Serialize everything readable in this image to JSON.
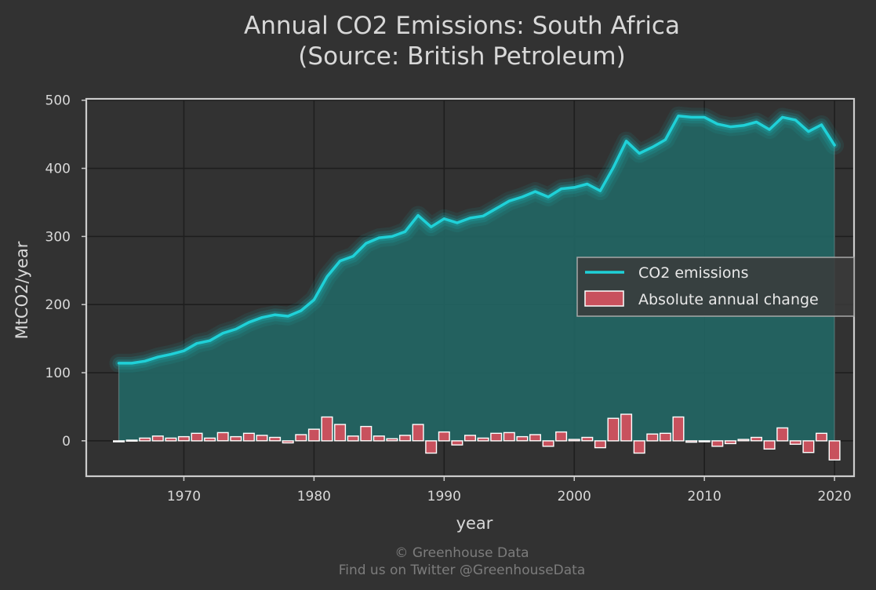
{
  "colors": {
    "background": "#323232",
    "line": "#1fd1d8",
    "glow": "#19b8bf",
    "fill": "#226563",
    "bar": "#c8515d",
    "bar_edge": "#ffffff",
    "frame": "#cccccc",
    "grid": "#1e1e1e"
  },
  "chart_data": {
    "type": "line",
    "title": "Annual CO2 Emissions: South Africa",
    "subtitle": "(Source: British Petroleum)",
    "xlabel": "year",
    "ylabel": "MtCO2/year",
    "xlim": [
      1962.5,
      2021.5
    ],
    "ylim": [
      -52,
      502
    ],
    "x_ticks": [
      1970,
      1980,
      1990,
      2000,
      2010,
      2020
    ],
    "y_ticks": [
      0,
      100,
      200,
      300,
      400,
      500
    ],
    "grid": true,
    "legend_position": "right",
    "x": [
      1965,
      1966,
      1967,
      1968,
      1969,
      1970,
      1971,
      1972,
      1973,
      1974,
      1975,
      1976,
      1977,
      1978,
      1979,
      1980,
      1981,
      1982,
      1983,
      1984,
      1985,
      1986,
      1987,
      1988,
      1989,
      1990,
      1991,
      1992,
      1993,
      1994,
      1995,
      1996,
      1997,
      1998,
      1999,
      2000,
      2001,
      2002,
      2003,
      2004,
      2005,
      2006,
      2007,
      2008,
      2009,
      2010,
      2011,
      2012,
      2013,
      2014,
      2015,
      2016,
      2017,
      2018,
      2019,
      2020
    ],
    "series": [
      {
        "name": "CO2 emissions",
        "type": "line",
        "values": [
          114,
          114,
          117,
          123,
          127,
          132,
          143,
          147,
          158,
          164,
          174,
          181,
          185,
          183,
          191,
          207,
          241,
          264,
          271,
          290,
          298,
          300,
          307,
          331,
          314,
          326,
          320,
          327,
          330,
          341,
          352,
          358,
          366,
          358,
          370,
          372,
          377,
          367,
          401,
          440,
          422,
          431,
          442,
          477,
          475,
          475,
          465,
          461,
          463,
          468,
          457,
          475,
          471,
          454,
          464,
          434
        ]
      },
      {
        "name": "Absolute annual change",
        "type": "bar",
        "values": [
          0,
          1,
          4,
          7,
          4,
          6,
          11,
          4,
          12,
          6,
          11,
          8,
          5,
          -3,
          9,
          17,
          35,
          24,
          7,
          21,
          7,
          3,
          8,
          24,
          -18,
          13,
          -6,
          8,
          4,
          11,
          12,
          6,
          9,
          -8,
          13,
          2,
          5,
          -10,
          33,
          39,
          -18,
          10,
          11,
          35,
          -2,
          0,
          -8,
          -4,
          2,
          5,
          -12,
          19,
          -5,
          -17,
          11,
          -28
        ]
      }
    ]
  },
  "footer": {
    "line1": "© Greenhouse Data",
    "line2": "Find us on Twitter @GreenhouseData"
  }
}
